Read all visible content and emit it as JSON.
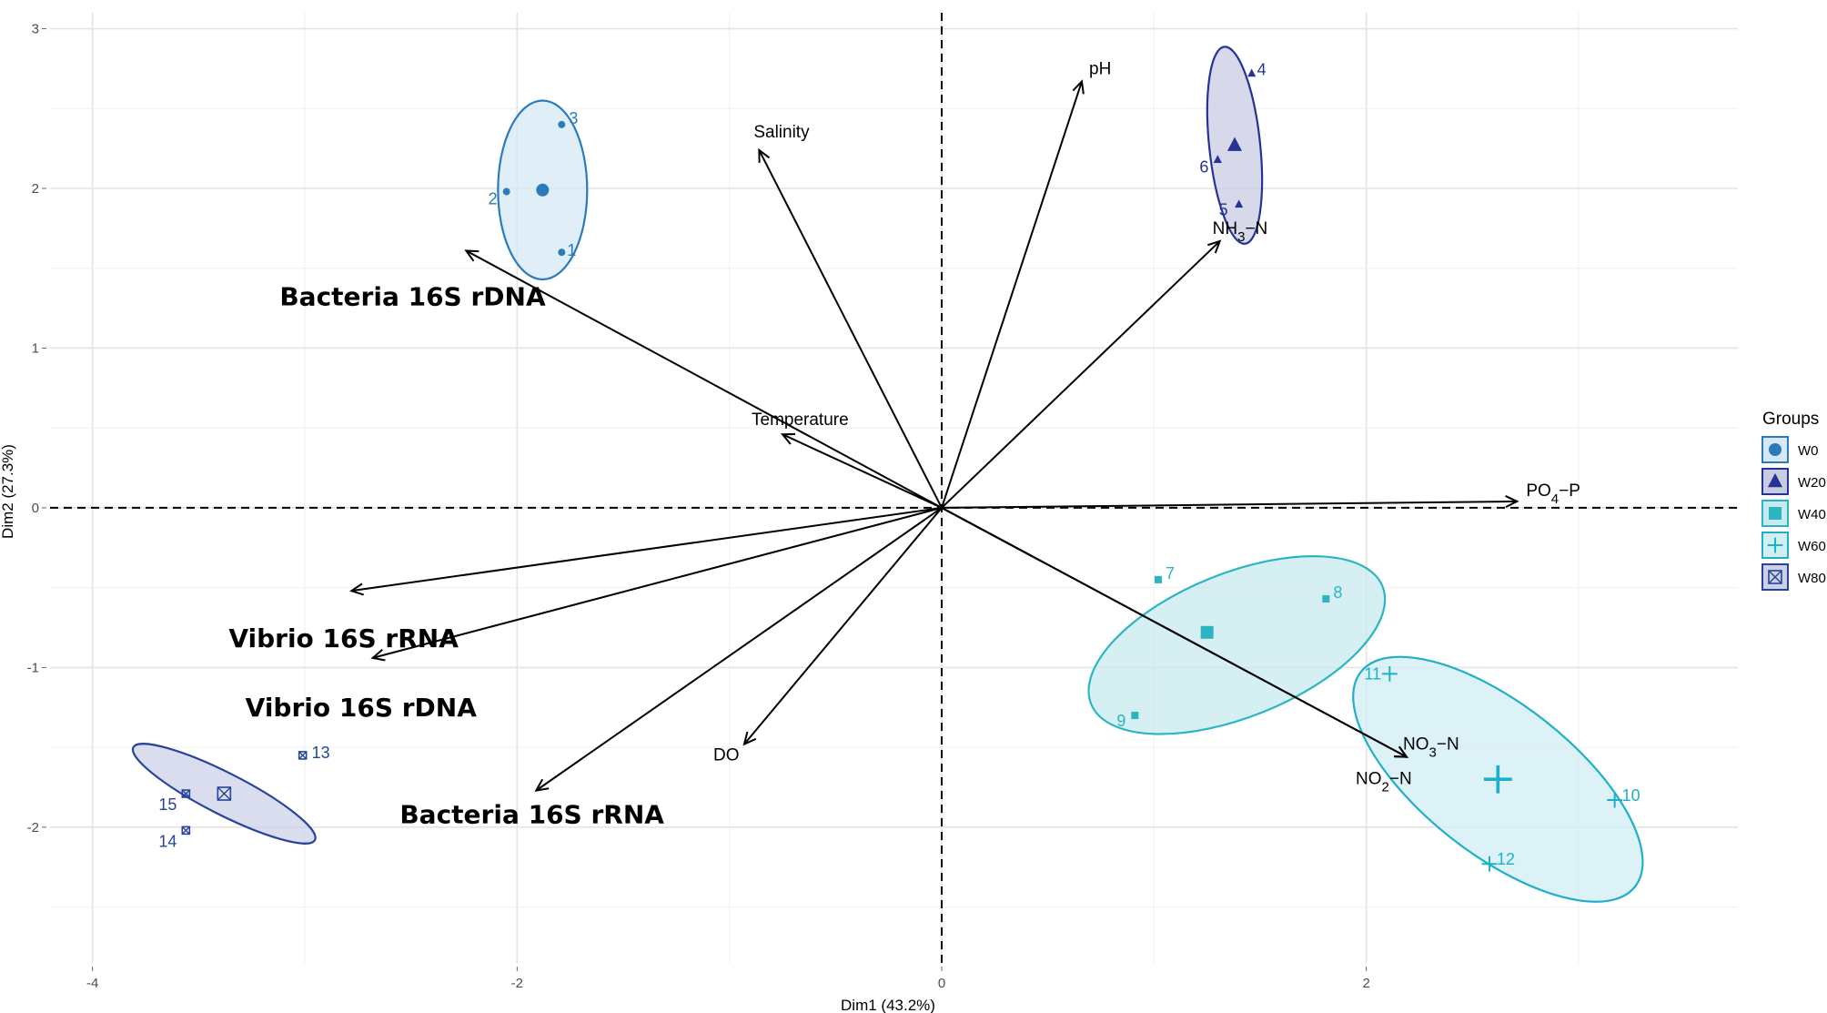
{
  "chart_data": {
    "type": "scatter",
    "subtype": "pca-biplot",
    "xlabel": "Dim1 (43.2%)",
    "ylabel": "Dim2 (27.3%)",
    "xlim": [
      -4.2,
      3.75
    ],
    "ylim": [
      -2.85,
      3.1
    ],
    "x_ticks": [
      -4,
      -2,
      0,
      2
    ],
    "x_tick_labels": [
      "-4",
      "-2",
      "0",
      "2"
    ],
    "y_ticks": [
      -2,
      -1,
      0,
      1,
      2,
      3
    ],
    "y_tick_labels": [
      "-2",
      "-1",
      "0",
      "1",
      "2",
      "3"
    ],
    "grid": true,
    "legend": {
      "title": "Groups",
      "position": "right",
      "entries": [
        {
          "label": "W0",
          "shape": "circle"
        },
        {
          "label": "W20",
          "shape": "triangle"
        },
        {
          "label": "W40",
          "shape": "square"
        },
        {
          "label": "W60",
          "shape": "plus"
        },
        {
          "label": "W80",
          "shape": "square-x"
        }
      ]
    },
    "groups": [
      {
        "name": "W0",
        "color": "#2b7bba",
        "fill": "#d6e8f6",
        "shape": "circle",
        "points": [
          {
            "label": "1",
            "x": -1.79,
            "y": 1.6
          },
          {
            "label": "2",
            "x": -2.05,
            "y": 1.98
          },
          {
            "label": "3",
            "x": -1.79,
            "y": 2.4
          }
        ],
        "centroid": {
          "x": -1.88,
          "y": 1.99
        },
        "ellipse": {
          "cx": -1.88,
          "cy": 1.99,
          "rx": 0.21,
          "ry": 0.56,
          "angle": 0
        }
      },
      {
        "name": "W20",
        "color": "#253494",
        "fill": "#c9cbe3",
        "shape": "triangle",
        "points": [
          {
            "label": "4",
            "x": 1.46,
            "y": 2.72
          },
          {
            "label": "5",
            "x": 1.4,
            "y": 1.9
          },
          {
            "label": "6",
            "x": 1.3,
            "y": 2.18
          }
        ],
        "centroid": {
          "x": 1.38,
          "y": 2.27
        },
        "ellipse": {
          "cx": 1.38,
          "cy": 2.27,
          "rx": 0.12,
          "ry": 0.62,
          "angle": -6
        }
      },
      {
        "name": "W40",
        "color": "#2bb5c2",
        "fill": "#c8eaee",
        "shape": "square",
        "points": [
          {
            "label": "7",
            "x": 1.02,
            "y": -0.45
          },
          {
            "label": "8",
            "x": 1.81,
            "y": -0.57
          },
          {
            "label": "9",
            "x": 0.91,
            "y": -1.3
          }
        ],
        "centroid": {
          "x": 1.25,
          "y": -0.78
        },
        "ellipse": {
          "cx": 1.39,
          "cy": -0.86,
          "rx": 0.74,
          "ry": 0.45,
          "angle": -22
        }
      },
      {
        "name": "W60",
        "color": "#1fb0c9",
        "fill": "#d1eef4",
        "shape": "plus",
        "points": [
          {
            "label": "10",
            "x": 3.17,
            "y": -1.83
          },
          {
            "label": "11",
            "x": 2.11,
            "y": -1.04
          },
          {
            "label": "12",
            "x": 2.58,
            "y": -2.23
          }
        ],
        "centroid": {
          "x": 2.62,
          "y": -1.7
        },
        "ellipse": {
          "cx": 2.62,
          "cy": -1.7,
          "rx": 0.82,
          "ry": 0.47,
          "angle": 38
        }
      },
      {
        "name": "W80",
        "color": "#27449a",
        "fill": "#ccd1e8",
        "shape": "square-x",
        "points": [
          {
            "label": "13",
            "x": -3.01,
            "y": -1.55
          },
          {
            "label": "14",
            "x": -3.56,
            "y": -2.02
          },
          {
            "label": "15",
            "x": -3.56,
            "y": -1.79
          }
        ],
        "centroid": {
          "x": -3.38,
          "y": -1.79
        },
        "ellipse": {
          "cx": -3.38,
          "cy": -1.79,
          "rx": 0.48,
          "ry": 0.13,
          "angle": 27
        }
      }
    ],
    "variables": [
      {
        "name": "pH",
        "x": 0.66,
        "y": 2.67,
        "style": "small"
      },
      {
        "name": "Salinity",
        "x": -0.86,
        "y": 2.24,
        "style": "small"
      },
      {
        "name": "NH3−N",
        "x": 1.31,
        "y": 1.67,
        "style": "small"
      },
      {
        "name": "Temperature",
        "x": -0.75,
        "y": 0.46,
        "style": "small"
      },
      {
        "name": "PO4−P",
        "x": 2.71,
        "y": 0.04,
        "style": "small"
      },
      {
        "name": "DO",
        "x": -0.93,
        "y": -1.48,
        "style": "small"
      },
      {
        "name": "NO3−N",
        "x": 2.19,
        "y": -1.56,
        "style": "small"
      },
      {
        "name": "NO2−N",
        "x": 2.19,
        "y": -1.56,
        "style": "small"
      },
      {
        "name": "Bacteria 16S rDNA",
        "x": -2.24,
        "y": 1.61,
        "style": "big"
      },
      {
        "name": "Vibrio 16S rRNA",
        "x": -2.78,
        "y": -0.52,
        "style": "big"
      },
      {
        "name": "Vibrio 16S rDNA",
        "x": -2.68,
        "y": -0.94,
        "style": "big"
      },
      {
        "name": "Bacteria 16S rRNA",
        "x": -1.91,
        "y": -1.77,
        "style": "big"
      }
    ]
  }
}
